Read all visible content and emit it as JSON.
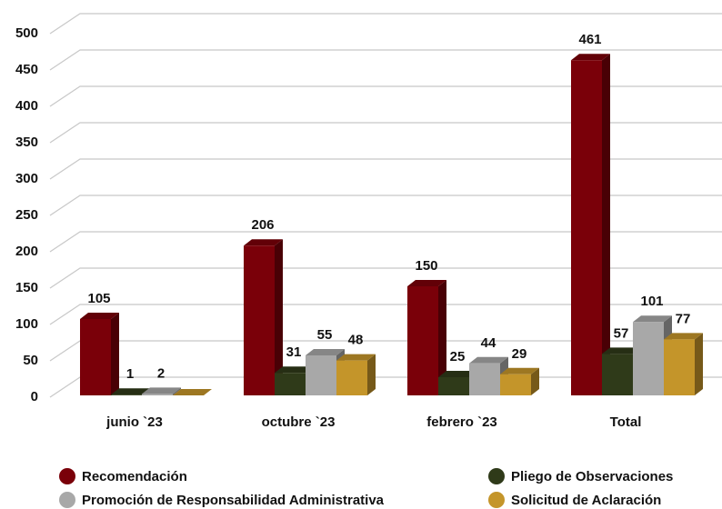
{
  "chart_data": {
    "type": "bar3d",
    "categories": [
      "junio `23",
      "octubre `23",
      "febrero `23",
      "Total"
    ],
    "series": [
      {
        "name": "Recomendación",
        "color": "#7a0009",
        "values": [
          105,
          206,
          150,
          461
        ]
      },
      {
        "name": "Pliego de Observaciones",
        "color": "#2f3a19",
        "values": [
          1,
          31,
          25,
          57
        ]
      },
      {
        "name": "Promoción de Responsabilidad Administrativa",
        "color": "#a8a8a8",
        "values": [
          2,
          55,
          44,
          101
        ]
      },
      {
        "name": "Solicitud de Aclaración",
        "color": "#c4952a",
        "values": [
          0,
          48,
          29,
          77
        ]
      }
    ],
    "ylim": [
      0,
      500
    ],
    "yticks": [
      0,
      50,
      100,
      150,
      200,
      250,
      300,
      350,
      400,
      450,
      500
    ],
    "grid": true
  }
}
